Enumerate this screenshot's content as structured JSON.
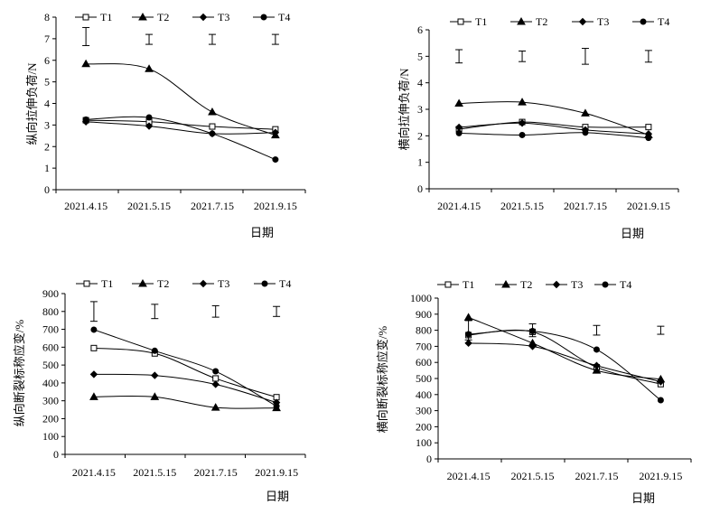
{
  "chart_data": [
    {
      "type": "line",
      "title": "",
      "xlabel": "日期",
      "ylabel": "纵向拉伸负荷/N",
      "categories": [
        "2021.4.15",
        "2021.5.15",
        "2021.7.15",
        "2021.9.15"
      ],
      "ylim": [
        0,
        8
      ],
      "yticks": [
        0,
        1,
        2,
        3,
        4,
        5,
        6,
        7,
        8
      ],
      "legend_position": "top",
      "grid": false,
      "error_bars": [
        {
          "center": 7.1,
          "half_width": 0.42
        },
        {
          "center": 6.97,
          "half_width": 0.23
        },
        {
          "center": 6.97,
          "half_width": 0.23
        },
        {
          "center": 6.97,
          "half_width": 0.23
        }
      ],
      "series": [
        {
          "name": "T1",
          "marker": "square",
          "values": [
            3.22,
            3.15,
            2.93,
            2.8
          ]
        },
        {
          "name": "T2",
          "marker": "triangle",
          "values": [
            5.83,
            5.6,
            3.6,
            2.53
          ]
        },
        {
          "name": "T3",
          "marker": "diamond",
          "values": [
            3.15,
            2.95,
            2.6,
            2.65
          ]
        },
        {
          "name": "T4",
          "marker": "circle",
          "values": [
            3.25,
            3.35,
            2.6,
            1.4
          ]
        }
      ]
    },
    {
      "type": "line",
      "title": "",
      "xlabel": "日期",
      "ylabel": "横向拉伸负荷/N",
      "categories": [
        "2021.4.15",
        "2021.5.15",
        "2021.7.15",
        "2021.9.15"
      ],
      "ylim": [
        0,
        6
      ],
      "yticks": [
        0,
        1,
        2,
        3,
        4,
        5,
        6
      ],
      "legend_position": "top",
      "grid": false,
      "error_bars": [
        {
          "center": 5.0,
          "half_width": 0.25
        },
        {
          "center": 5.0,
          "half_width": 0.2
        },
        {
          "center": 5.0,
          "half_width": 0.3
        },
        {
          "center": 5.0,
          "half_width": 0.22
        }
      ],
      "series": [
        {
          "name": "T1",
          "marker": "square",
          "values": [
            2.25,
            2.52,
            2.33,
            2.33
          ]
        },
        {
          "name": "T2",
          "marker": "triangle",
          "values": [
            3.22,
            3.27,
            2.85,
            2.03
          ]
        },
        {
          "name": "T3",
          "marker": "diamond",
          "values": [
            2.32,
            2.48,
            2.22,
            2.07
          ]
        },
        {
          "name": "T4",
          "marker": "circle",
          "values": [
            2.1,
            2.03,
            2.12,
            1.92
          ]
        }
      ]
    },
    {
      "type": "line",
      "title": "",
      "xlabel": "日期",
      "ylabel": "纵向断裂标称应变/%",
      "categories": [
        "2021.4.15",
        "2021.5.15",
        "2021.7.15",
        "2021.9.15"
      ],
      "ylim": [
        0,
        900
      ],
      "yticks": [
        0,
        100,
        200,
        300,
        400,
        500,
        600,
        700,
        800,
        900
      ],
      "legend_position": "top",
      "grid": false,
      "error_bars": [
        {
          "center": 800,
          "half_width": 55
        },
        {
          "center": 800,
          "half_width": 40
        },
        {
          "center": 800,
          "half_width": 32
        },
        {
          "center": 800,
          "half_width": 28
        }
      ],
      "series": [
        {
          "name": "T1",
          "marker": "square",
          "values": [
            595,
            565,
            425,
            320
          ]
        },
        {
          "name": "T2",
          "marker": "triangle",
          "values": [
            322,
            322,
            262,
            260
          ]
        },
        {
          "name": "T3",
          "marker": "diamond",
          "values": [
            448,
            442,
            392,
            290
          ]
        },
        {
          "name": "T4",
          "marker": "circle",
          "values": [
            698,
            580,
            465,
            270
          ]
        }
      ]
    },
    {
      "type": "line",
      "title": "",
      "xlabel": "日期",
      "ylabel": "横向断裂标称应变/%",
      "categories": [
        "2021.4.15",
        "2021.5.15",
        "2021.7.15",
        "2021.9.15"
      ],
      "ylim": [
        0,
        1000
      ],
      "yticks": [
        0,
        100,
        200,
        300,
        400,
        500,
        600,
        700,
        800,
        900,
        1000
      ],
      "legend_position": "top",
      "grid": false,
      "error_bars": [
        {
          "center": 800,
          "half_width": 60
        },
        {
          "center": 800,
          "half_width": 40
        },
        {
          "center": 800,
          "half_width": 30
        },
        {
          "center": 800,
          "half_width": 25
        }
      ],
      "series": [
        {
          "name": "T1",
          "marker": "square",
          "values": [
            770,
            790,
            570,
            465
          ]
        },
        {
          "name": "T2",
          "marker": "triangle",
          "values": [
            880,
            720,
            550,
            495
          ]
        },
        {
          "name": "T3",
          "marker": "diamond",
          "values": [
            720,
            700,
            580,
            480
          ]
        },
        {
          "name": "T4",
          "marker": "circle",
          "values": [
            775,
            795,
            680,
            365
          ]
        }
      ]
    }
  ]
}
